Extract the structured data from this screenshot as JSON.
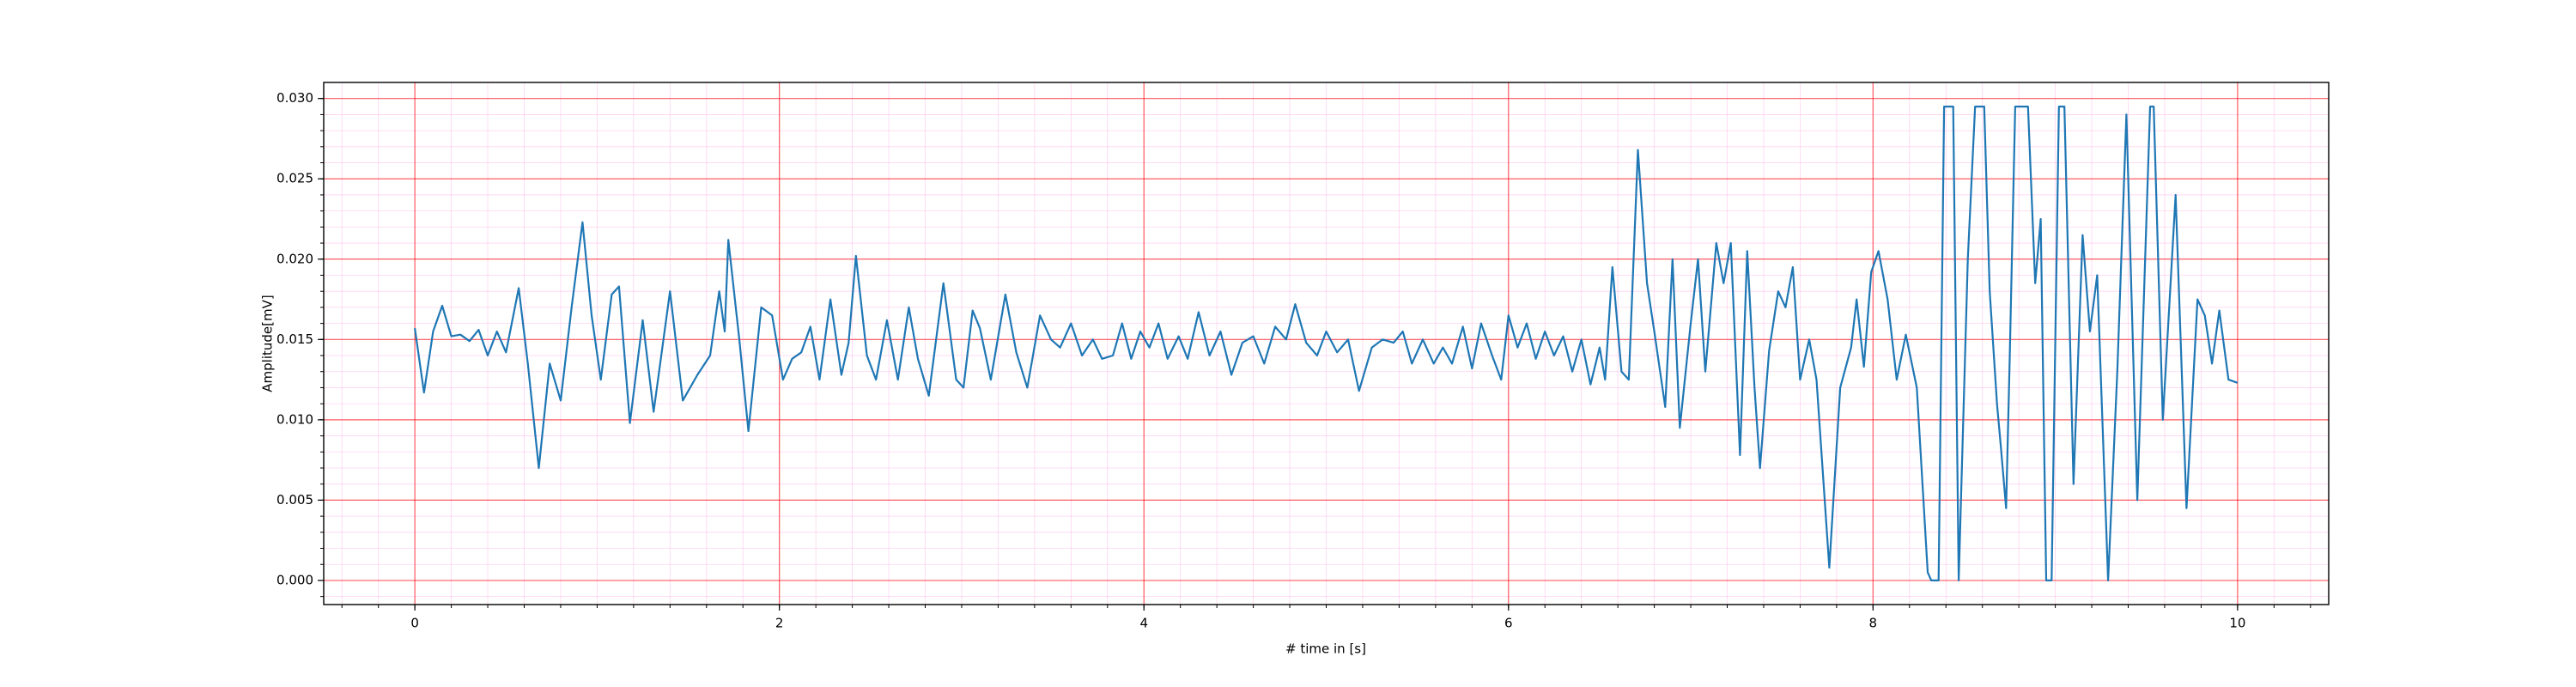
{
  "chart_data": {
    "type": "line",
    "xlabel": "# time in [s]",
    "ylabel": "Amplitude[mV]",
    "xlim": [
      -0.5,
      10.5
    ],
    "ylim": [
      -0.0015,
      0.031
    ],
    "xticks": [
      0,
      2,
      4,
      6,
      8,
      10
    ],
    "yticks": [
      {
        "value": 0,
        "label": "0.000"
      },
      {
        "value": 0.005,
        "label": "0.005"
      },
      {
        "value": 0.01,
        "label": "0.010"
      },
      {
        "value": 0.015,
        "label": "0.015"
      },
      {
        "value": 0.02,
        "label": "0.020"
      },
      {
        "value": 0.025,
        "label": "0.025"
      },
      {
        "value": 0.03,
        "label": "0.030"
      }
    ],
    "grid": true,
    "minor_grid": true,
    "grid_color": "#ff0000",
    "minor_grid_color": "#ffb6e6",
    "series": [
      {
        "color": "#1f77b4",
        "x": [
          0,
          0.05,
          0.1,
          0.15,
          0.2,
          0.25,
          0.3,
          0.35,
          0.4,
          0.45,
          0.5,
          0.57,
          0.62,
          0.68,
          0.74,
          0.8,
          0.86,
          0.92,
          0.97,
          1.02,
          1.08,
          1.12,
          1.18,
          1.25,
          1.31,
          1.4,
          1.47,
          1.55,
          1.62,
          1.67,
          1.7,
          1.72,
          1.78,
          1.83,
          1.9,
          1.96,
          2.02,
          2.07,
          2.12,
          2.17,
          2.22,
          2.28,
          2.34,
          2.38,
          2.42,
          2.48,
          2.53,
          2.59,
          2.65,
          2.71,
          2.76,
          2.82,
          2.9,
          2.97,
          3.01,
          3.06,
          3.1,
          3.16,
          3.24,
          3.3,
          3.36,
          3.43,
          3.49,
          3.54,
          3.6,
          3.66,
          3.72,
          3.77,
          3.83,
          3.88,
          3.93,
          3.98,
          4.03,
          4.08,
          4.13,
          4.19,
          4.24,
          4.3,
          4.36,
          4.42,
          4.48,
          4.54,
          4.6,
          4.66,
          4.72,
          4.78,
          4.83,
          4.89,
          4.95,
          5.0,
          5.06,
          5.12,
          5.18,
          5.25,
          5.31,
          5.37,
          5.42,
          5.47,
          5.53,
          5.59,
          5.64,
          5.69,
          5.75,
          5.8,
          5.85,
          5.91,
          5.96,
          6.0,
          6.05,
          6.1,
          6.15,
          6.2,
          6.25,
          6.3,
          6.35,
          6.4,
          6.45,
          6.5,
          6.53,
          6.57,
          6.62,
          6.66,
          6.71,
          6.76,
          6.8,
          6.86,
          6.9,
          6.94,
          7.0,
          7.04,
          7.08,
          7.14,
          7.18,
          7.22,
          7.27,
          7.31,
          7.35,
          7.38,
          7.43,
          7.48,
          7.52,
          7.56,
          7.6,
          7.65,
          7.69,
          7.76,
          7.82,
          7.88,
          7.91,
          7.95,
          7.99,
          8.03,
          8.08,
          8.13,
          8.18,
          8.24,
          8.3,
          8.32,
          8.36,
          8.39,
          8.44,
          8.47,
          8.52,
          8.56,
          8.61,
          8.64,
          8.68,
          8.7,
          8.73,
          8.75,
          8.78,
          8.85,
          8.89,
          8.92,
          8.95,
          8.98,
          9.02,
          9.05,
          9.1,
          9.15,
          9.19,
          9.23,
          9.29,
          9.34,
          9.39,
          9.45,
          9.52,
          9.54,
          9.59,
          9.66,
          9.72,
          9.78,
          9.82,
          9.86,
          9.9,
          9.95,
          10.0
        ],
        "values": [
          0.0157,
          0.0117,
          0.0155,
          0.0171,
          0.0152,
          0.0153,
          0.0149,
          0.0156,
          0.014,
          0.0155,
          0.0142,
          0.0182,
          0.0135,
          0.007,
          0.0135,
          0.0112,
          0.017,
          0.0223,
          0.0165,
          0.0125,
          0.0178,
          0.0183,
          0.0098,
          0.0162,
          0.0105,
          0.018,
          0.0112,
          0.0128,
          0.014,
          0.018,
          0.0155,
          0.0212,
          0.015,
          0.0093,
          0.017,
          0.0165,
          0.0125,
          0.0138,
          0.0142,
          0.0158,
          0.0125,
          0.0175,
          0.0128,
          0.0148,
          0.0202,
          0.014,
          0.0125,
          0.0162,
          0.0125,
          0.017,
          0.0138,
          0.0115,
          0.0185,
          0.0125,
          0.012,
          0.0168,
          0.0157,
          0.0125,
          0.0178,
          0.0142,
          0.012,
          0.0165,
          0.015,
          0.0145,
          0.016,
          0.014,
          0.015,
          0.0138,
          0.014,
          0.016,
          0.0138,
          0.0155,
          0.0145,
          0.016,
          0.0138,
          0.0152,
          0.0138,
          0.0167,
          0.014,
          0.0155,
          0.0128,
          0.0148,
          0.0152,
          0.0135,
          0.0158,
          0.015,
          0.0172,
          0.0148,
          0.014,
          0.0155,
          0.0142,
          0.015,
          0.0118,
          0.0145,
          0.015,
          0.0148,
          0.0155,
          0.0135,
          0.015,
          0.0135,
          0.0145,
          0.0135,
          0.0158,
          0.0132,
          0.016,
          0.014,
          0.0125,
          0.0165,
          0.0145,
          0.016,
          0.0138,
          0.0155,
          0.014,
          0.0152,
          0.013,
          0.015,
          0.0122,
          0.0145,
          0.0125,
          0.0195,
          0.013,
          0.0125,
          0.0268,
          0.0185,
          0.0155,
          0.0108,
          0.02,
          0.0095,
          0.016,
          0.02,
          0.013,
          0.021,
          0.0185,
          0.021,
          0.0078,
          0.0205,
          0.012,
          0.007,
          0.0143,
          0.018,
          0.017,
          0.0195,
          0.0125,
          0.015,
          0.0125,
          0.0008,
          0.012,
          0.0145,
          0.0175,
          0.0133,
          0.0192,
          0.0205,
          0.0175,
          0.0125,
          0.0153,
          0.012,
          0.0005,
          0,
          0,
          0.0295,
          0.0295,
          0,
          0.02,
          0.0295,
          0.0295,
          0.018,
          0.011,
          0.0085,
          0.0045,
          0.0138,
          0.0295,
          0.0295,
          0.0185,
          0.0225,
          0,
          0,
          0.0295,
          0.0295,
          0.006,
          0.0215,
          0.0155,
          0.019,
          0,
          0.013,
          0.029,
          0.005,
          0.0295,
          0.0295,
          0.01,
          0.024,
          0.0045,
          0.0175,
          0.0165,
          0.0135,
          0.0168,
          0.0125,
          0.0123
        ]
      }
    ]
  }
}
